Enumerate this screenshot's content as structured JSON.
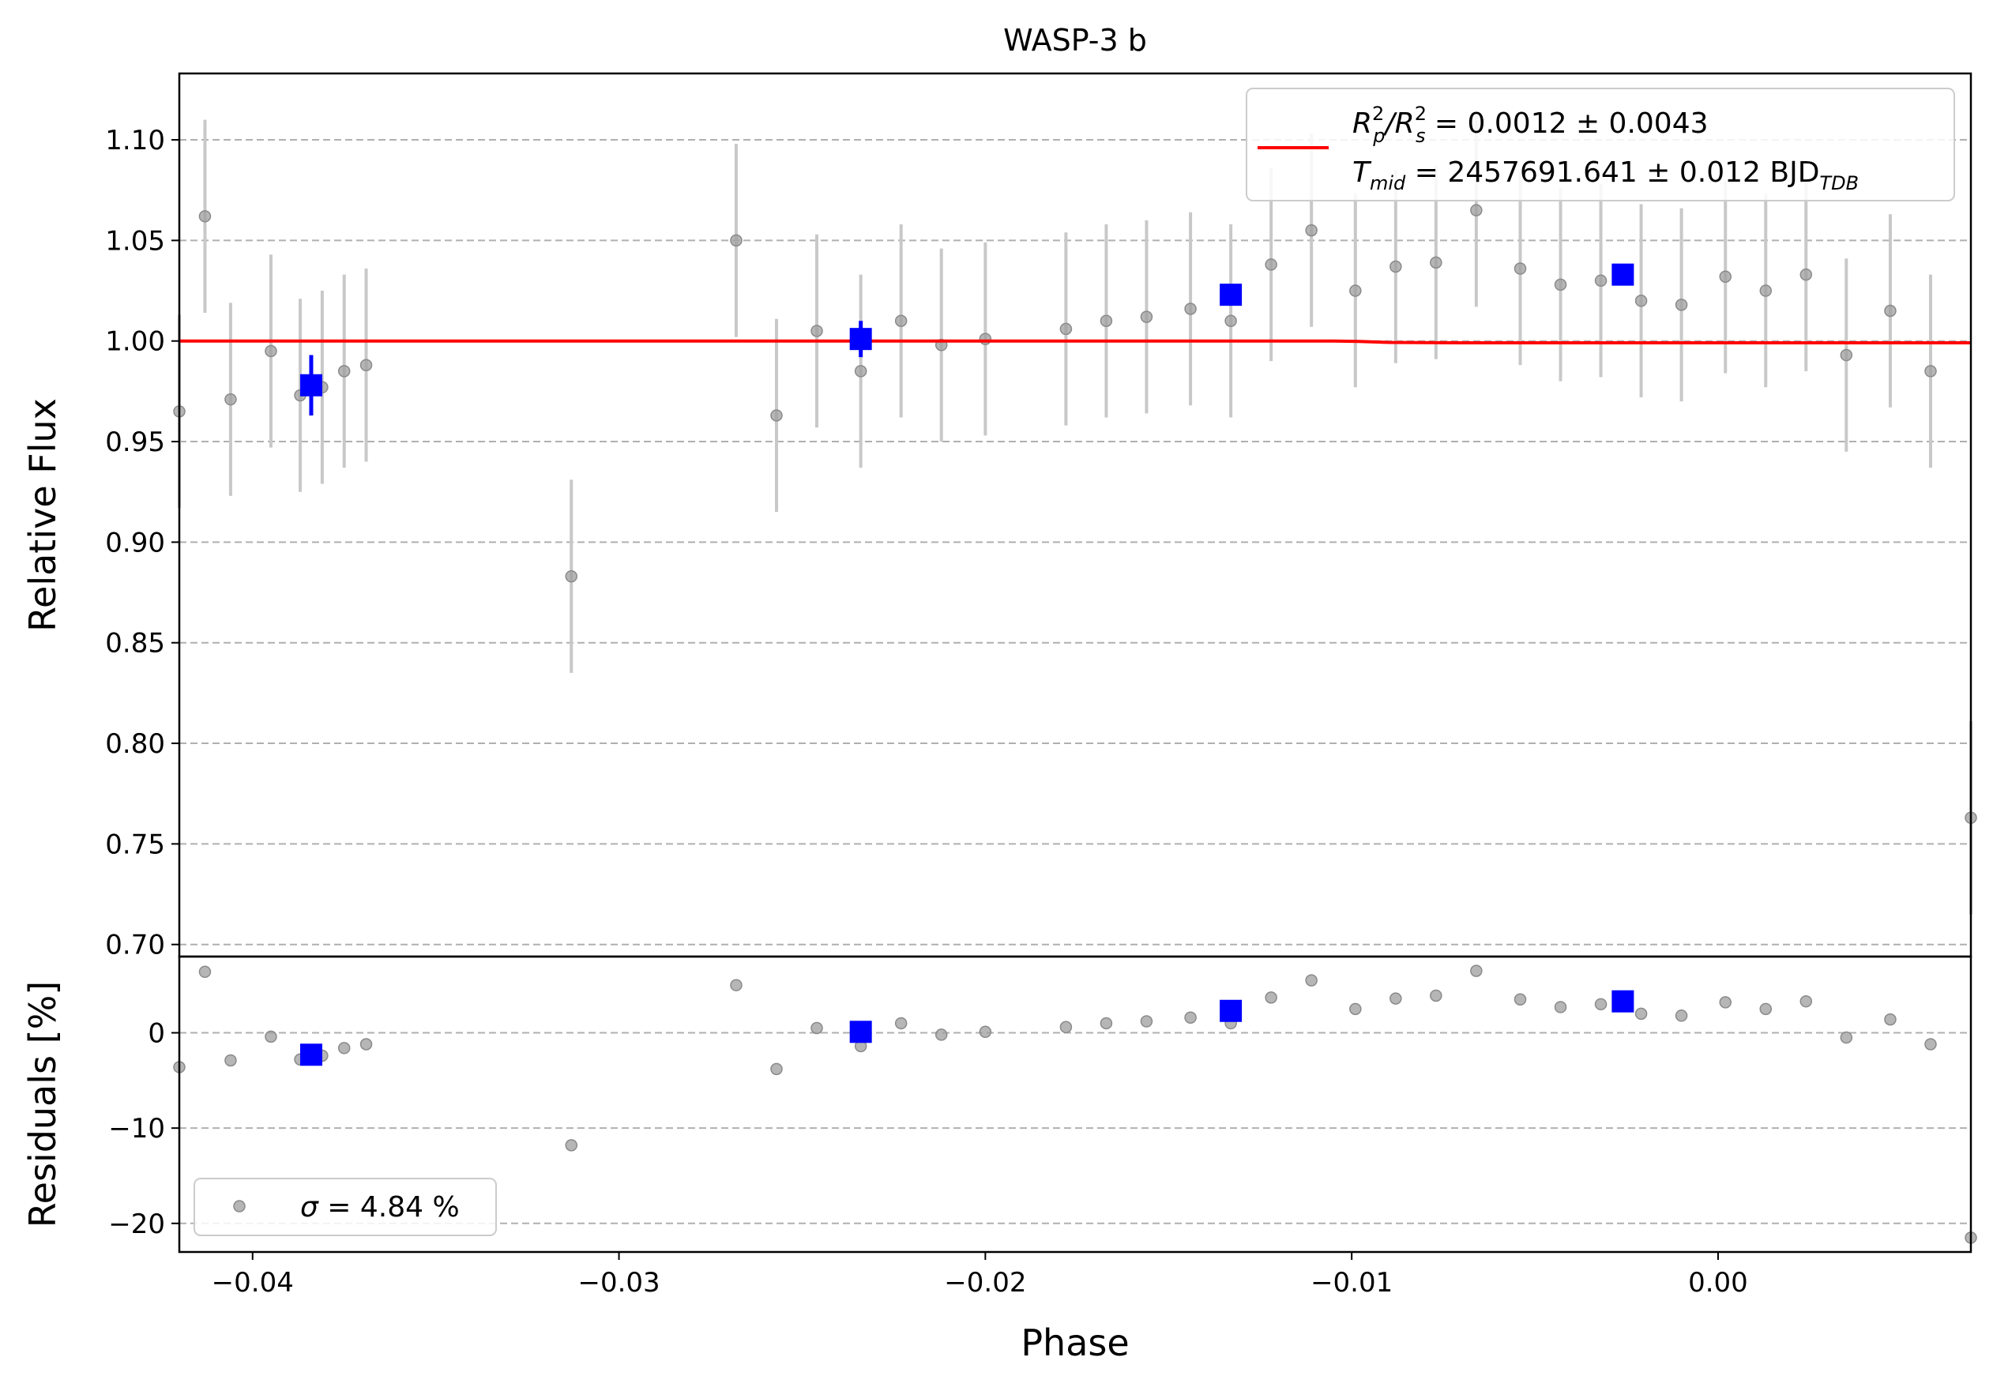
{
  "chart_data": [
    {
      "type": "scatter",
      "panel": "light curve",
      "title": "WASP-3 b",
      "xlabel": "",
      "ylabel": "Relative Flux",
      "xlim": [
        -0.042,
        0.0069
      ],
      "ylim": [
        0.694,
        1.133
      ],
      "grid": "horizontal dashed",
      "yticks": [
        "0.70",
        "0.75",
        "0.80",
        "0.85",
        "0.90",
        "0.95",
        "1.00",
        "1.05",
        "1.10"
      ],
      "legend_position": "top-right",
      "legend": {
        "line1_prefix": "R",
        "line1_sup1": "2",
        "line1_sub1": "p",
        "line1_mid": "/R",
        "line1_sup2": "2",
        "line1_sub2": "s",
        "line1_value": " = 0.0012 ± 0.0043",
        "line2_prefix": "T",
        "line2_sub": "mid",
        "line2_value": " = 2457691.641 ± 0.012 BJD",
        "line2_unit_sub": "TDB"
      },
      "series": [
        {
          "kind": "data",
          "color": "#9e9e9e",
          "points": [
            [
              -0.042,
              0.965,
              0.048
            ],
            [
              -0.0413,
              1.062,
              0.048
            ],
            [
              -0.0406,
              0.971,
              0.048
            ],
            [
              -0.0395,
              0.995,
              0.048
            ],
            [
              -0.0387,
              0.973,
              0.048
            ],
            [
              -0.0381,
              0.977,
              0.048
            ],
            [
              -0.0375,
              0.985,
              0.048
            ],
            [
              -0.0369,
              0.988,
              0.048
            ],
            [
              -0.0313,
              0.883,
              0.048
            ],
            [
              -0.0268,
              1.05,
              0.048
            ],
            [
              -0.0257,
              0.963,
              0.048
            ],
            [
              -0.0246,
              1.005,
              0.048
            ],
            [
              -0.0234,
              0.985,
              0.048
            ],
            [
              -0.0223,
              1.01,
              0.048
            ],
            [
              -0.0212,
              0.998,
              0.048
            ],
            [
              -0.02,
              1.001,
              0.048
            ],
            [
              -0.0178,
              1.006,
              0.048
            ],
            [
              -0.0167,
              1.01,
              0.048
            ],
            [
              -0.0156,
              1.012,
              0.048
            ],
            [
              -0.0144,
              1.016,
              0.048
            ],
            [
              -0.0133,
              1.01,
              0.048
            ],
            [
              -0.0122,
              1.038,
              0.048
            ],
            [
              -0.0111,
              1.055,
              0.048
            ],
            [
              -0.0099,
              1.025,
              0.048
            ],
            [
              -0.0088,
              1.037,
              0.048
            ],
            [
              -0.0077,
              1.039,
              0.048
            ],
            [
              -0.0066,
              1.065,
              0.048
            ],
            [
              -0.0054,
              1.036,
              0.048
            ],
            [
              -0.0043,
              1.028,
              0.048
            ],
            [
              -0.0032,
              1.03,
              0.048
            ],
            [
              -0.0021,
              1.02,
              0.048
            ],
            [
              -0.001,
              1.018,
              0.048
            ],
            [
              0.0002,
              1.032,
              0.048
            ],
            [
              0.0013,
              1.025,
              0.048
            ],
            [
              0.0024,
              1.033,
              0.048
            ],
            [
              0.0035,
              0.993,
              0.048
            ],
            [
              0.0047,
              1.015,
              0.048
            ],
            [
              0.0058,
              0.985,
              0.048
            ],
            [
              0.0069,
              0.763,
              0.048
            ]
          ]
        },
        {
          "kind": "binned",
          "color": "#0000ff",
          "points": [
            [
              -0.0384,
              0.978,
              0.015
            ],
            [
              -0.0234,
              1.001,
              0.009
            ],
            [
              -0.0133,
              1.023,
              0.004
            ],
            [
              -0.0026,
              1.033,
              0.004
            ]
          ]
        },
        {
          "kind": "model",
          "color": "#ff0000",
          "points": [
            [
              -0.042,
              1.0
            ],
            [
              -0.0105,
              1.0
            ],
            [
              -0.0098,
              0.9998
            ],
            [
              -0.009,
              0.9993
            ],
            [
              -0.007,
              0.9991
            ],
            [
              0.0069,
              0.9991
            ]
          ]
        }
      ]
    },
    {
      "type": "scatter",
      "panel": "residuals",
      "xlabel": "Phase",
      "ylabel": "Residuals [%]",
      "xlim": [
        -0.042,
        0.0069
      ],
      "ylim": [
        -23,
        8
      ],
      "grid": "horizontal dashed",
      "xticks": [
        "−0.04",
        "−0.03",
        "−0.02",
        "−0.01",
        "0.00"
      ],
      "yticks": [
        "−20",
        "−10",
        "0"
      ],
      "legend_position": "lower-left",
      "legend": {
        "symbol": "σ",
        "value": " = 4.84 %"
      },
      "series": [
        {
          "kind": "residuals",
          "color": "#9e9e9e",
          "points": [
            [
              -0.042,
              -3.6
            ],
            [
              -0.0413,
              6.4
            ],
            [
              -0.0406,
              -2.9
            ],
            [
              -0.0395,
              -0.4
            ],
            [
              -0.0387,
              -2.8
            ],
            [
              -0.0381,
              -2.4
            ],
            [
              -0.0375,
              -1.6
            ],
            [
              -0.0369,
              -1.2
            ],
            [
              -0.0313,
              -11.8
            ],
            [
              -0.0268,
              5.0
            ],
            [
              -0.0257,
              -3.8
            ],
            [
              -0.0246,
              0.5
            ],
            [
              -0.0234,
              -1.4
            ],
            [
              -0.0223,
              1.0
            ],
            [
              -0.0212,
              -0.2
            ],
            [
              -0.02,
              0.1
            ],
            [
              -0.0178,
              0.6
            ],
            [
              -0.0167,
              1.0
            ],
            [
              -0.0156,
              1.2
            ],
            [
              -0.0144,
              1.6
            ],
            [
              -0.0133,
              1.0
            ],
            [
              -0.0122,
              3.7
            ],
            [
              -0.0111,
              5.5
            ],
            [
              -0.0099,
              2.5
            ],
            [
              -0.0088,
              3.6
            ],
            [
              -0.0077,
              3.9
            ],
            [
              -0.0066,
              6.5
            ],
            [
              -0.0054,
              3.5
            ],
            [
              -0.0043,
              2.7
            ],
            [
              -0.0032,
              3.0
            ],
            [
              -0.0021,
              2.0
            ],
            [
              -0.001,
              1.8
            ],
            [
              0.0002,
              3.2
            ],
            [
              0.0013,
              2.5
            ],
            [
              0.0024,
              3.3
            ],
            [
              0.0035,
              -0.5
            ],
            [
              0.0047,
              1.4
            ],
            [
              0.0058,
              -1.2
            ],
            [
              0.0069,
              -21.5
            ]
          ]
        },
        {
          "kind": "binned",
          "color": "#0000ff",
          "points": [
            [
              -0.0384,
              -2.3
            ],
            [
              -0.0234,
              0.1
            ],
            [
              -0.0133,
              2.3
            ],
            [
              -0.0026,
              3.3
            ]
          ]
        }
      ]
    }
  ]
}
